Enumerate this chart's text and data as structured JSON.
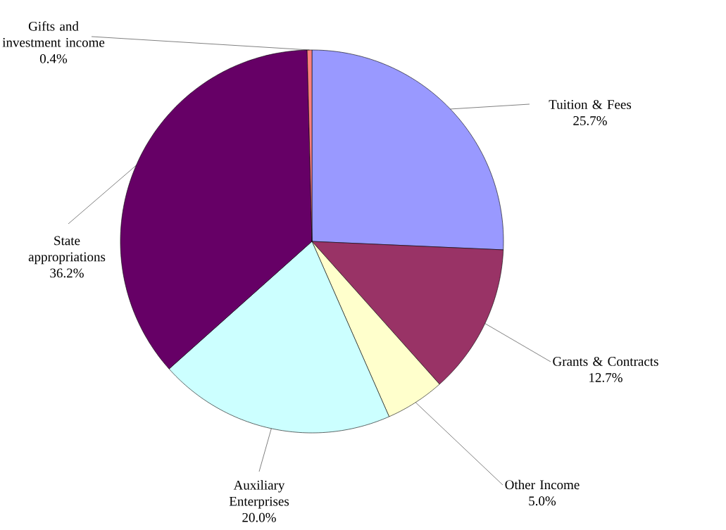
{
  "chart_data": {
    "type": "pie",
    "categories": [
      "Tuition & Fees",
      "Grants & Contracts",
      "Other Income",
      "Auxiliary Enterprises",
      "State appropriations",
      "Gifts and investment income"
    ],
    "values": [
      25.7,
      12.7,
      5.0,
      20.0,
      36.2,
      0.4
    ],
    "value_labels": [
      "25.7%",
      "12.7%",
      "5.0%",
      "20.0%",
      "36.2%",
      "0.4%"
    ],
    "colors": [
      "#9999ff",
      "#993366",
      "#ffffcc",
      "#ccffff",
      "#660066",
      "#ff8080"
    ]
  }
}
